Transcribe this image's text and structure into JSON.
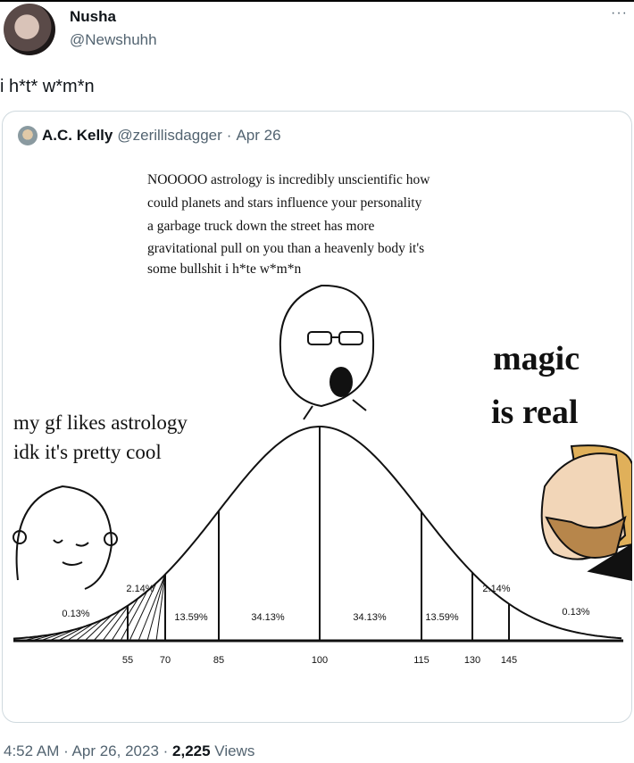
{
  "tweet": {
    "name": "Nusha",
    "handle": "@Newshuhh",
    "text": "i h*t* w*m*n",
    "more": "···",
    "timestamp": "4:52 AM · Apr 26, 2023 · ",
    "views_count": "2,225",
    "views_label": " Views"
  },
  "quote": {
    "name": "A.C. Kelly",
    "handle": "@zerillisdagger",
    "separator": " · ",
    "date": "Apr 26"
  },
  "meme": {
    "top_caption": [
      "NOOOOO astrology is incredibly unscientific how",
      "could planets and stars influence your personality",
      "a garbage truck down the street has more",
      "gravitational pull on you than a heavenly body it's",
      "some bullshit i h*te w*m*n"
    ],
    "left_caption": [
      "my gf likes astrology",
      "idk it's pretty cool"
    ],
    "right_caption": [
      "magic",
      "is real"
    ],
    "ticks": [
      "55",
      "70",
      "85",
      "100",
      "115",
      "130",
      "145"
    ],
    "percent_labels": [
      "0.13%",
      "2.14%",
      "13.59%",
      "34.13%",
      "34.13%",
      "13.59%",
      "2.14%",
      "0.13%"
    ]
  }
}
